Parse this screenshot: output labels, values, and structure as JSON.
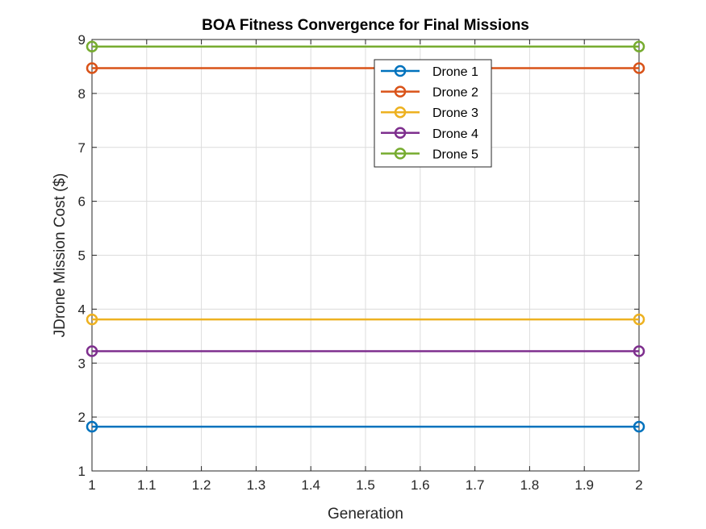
{
  "chart_data": {
    "type": "line",
    "title": "BOA Fitness Convergence for Final Missions",
    "xlabel": "Generation",
    "ylabel": "JDrone Mission Cost ($)",
    "xlim": [
      1,
      2
    ],
    "ylim": [
      1,
      9
    ],
    "xticks": [
      1,
      1.1,
      1.2,
      1.3,
      1.4,
      1.5,
      1.6,
      1.7,
      1.8,
      1.9,
      2
    ],
    "xtick_labels": [
      "1",
      "1.1",
      "1.2",
      "1.3",
      "1.4",
      "1.5",
      "1.6",
      "1.7",
      "1.8",
      "1.9",
      "2"
    ],
    "yticks": [
      1,
      2,
      3,
      4,
      5,
      6,
      7,
      8,
      9
    ],
    "ytick_labels": [
      "1",
      "2",
      "3",
      "4",
      "5",
      "6",
      "7",
      "8",
      "9"
    ],
    "grid": true,
    "legend_position": "top-center",
    "x": [
      1,
      2
    ],
    "series": [
      {
        "name": "Drone 1",
        "values": [
          1.82,
          1.82
        ],
        "color": "#0072BD"
      },
      {
        "name": "Drone 2",
        "values": [
          8.47,
          8.47
        ],
        "color": "#D95319"
      },
      {
        "name": "Drone 3",
        "values": [
          3.81,
          3.81
        ],
        "color": "#EDB120"
      },
      {
        "name": "Drone 4",
        "values": [
          3.22,
          3.22
        ],
        "color": "#7E2F8E"
      },
      {
        "name": "Drone 5",
        "values": [
          8.87,
          8.87
        ],
        "color": "#77AC30"
      }
    ]
  }
}
